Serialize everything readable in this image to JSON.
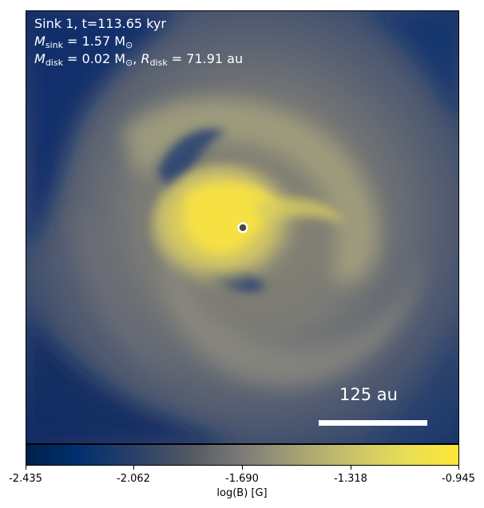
{
  "panel": {
    "line1": "Sink 1, t=113.65 kyr",
    "m_sink_symbol": "M",
    "m_sink_sub": "sink",
    "m_sink_value": " = 1.57 M",
    "m_sink_unit_sub": "⊙",
    "m_disk_symbol": "M",
    "m_disk_sub": "disk",
    "m_disk_value": " = 0.02 M",
    "m_disk_unit_sub": "⊙",
    "r_disk_sep": ", ",
    "r_disk_symbol": "R",
    "r_disk_sub": "disk",
    "r_disk_value": " = 71.91 au"
  },
  "scalebar": {
    "label": "125 au"
  },
  "colorbar": {
    "ticks": [
      "-2.435",
      "-2.062",
      "-1.690",
      "-1.318",
      "-0.945"
    ],
    "label": "log(B) [G]",
    "colormap": "cividis",
    "colors": [
      "#00204c",
      "#2a4069",
      "#7c7b78",
      "#c9c26a",
      "#fde737"
    ]
  },
  "sink_marker": {
    "fill": "#4a4a3a",
    "stroke": "#ffffff"
  }
}
